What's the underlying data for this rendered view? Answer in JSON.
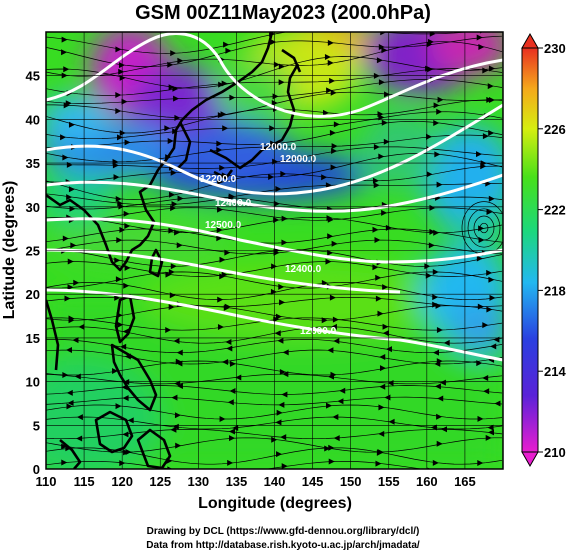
{
  "title": "GSM 00Z11May2023 (200.0hPa)",
  "chart_data": {
    "type": "heatmap",
    "title": "GSM 00Z11May2023 (200.0hPa)",
    "xlabel": "Longitude (degrees)",
    "ylabel": "Latitude  (degrees)",
    "xlim": [
      110,
      170
    ],
    "ylim": [
      0,
      50
    ],
    "x_ticks": [
      "110",
      "115",
      "120",
      "125",
      "130",
      "135",
      "140",
      "145",
      "150",
      "155",
      "160",
      "165"
    ],
    "y_ticks": [
      "0",
      "5",
      "10",
      "15",
      "20",
      "25",
      "30",
      "35",
      "40",
      "45"
    ],
    "colorbar": {
      "min": 210,
      "max": 230,
      "ticks": [
        "230",
        "226",
        "222",
        "218",
        "214",
        "210"
      ],
      "colors": [
        "#e81ecf",
        "#2a2ad8",
        "#22b8f0",
        "#1cd87a",
        "#2ee01a",
        "#d6ee10",
        "#f5a81c",
        "#e83020"
      ]
    },
    "contour_labels": [
      "12000.0",
      "12000.0",
      "12200.0",
      "12400.0",
      "12500.0",
      "12400.0",
      "12600.0"
    ],
    "grid": true
  },
  "credits": {
    "line1": "Drawing by DCL (https://www.gfd-dennou.org/library/dcl/)",
    "line2": "Data from http://database.rish.kyoto-u.ac.jp/arch/jmadata/"
  }
}
